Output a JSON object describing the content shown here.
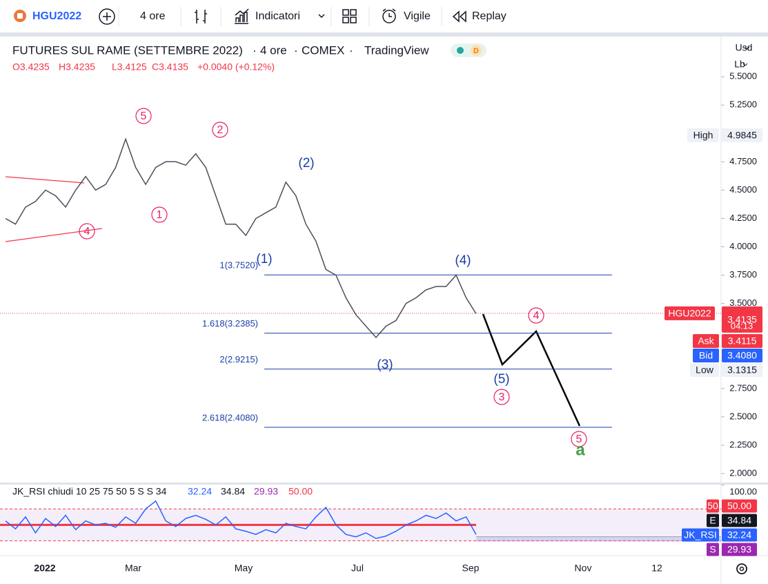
{
  "toolbar": {
    "symbol": "HGU2022",
    "interval": "4 ore",
    "indicators": "Indicatori",
    "alert": "Vigile",
    "replay": "Replay"
  },
  "legend": {
    "title": "FUTURES SUL RAME (SETTEMBRE 2022)",
    "separator": "·",
    "interval": "4 ore",
    "exchange": "COMEX",
    "source": "TradingView",
    "flag": "D",
    "ohlc": [
      "O3.4235",
      "H3.4235",
      "L3.4125",
      "C3.4135",
      "+0.0040 (+0.12%)"
    ]
  },
  "price_axis": {
    "currency": "Usd",
    "unit": "Lb"
  },
  "chart_data": {
    "type": "line",
    "color": "#4a4e5a",
    "values": [
      4.25,
      4.2,
      4.35,
      4.4,
      4.5,
      4.45,
      4.35,
      4.5,
      4.62,
      4.5,
      4.55,
      4.7,
      4.95,
      4.7,
      4.55,
      4.7,
      4.75,
      4.75,
      4.72,
      4.82,
      4.7,
      4.45,
      4.2,
      4.2,
      4.1,
      4.25,
      4.3,
      4.35,
      4.57,
      4.45,
      4.2,
      4.05,
      3.8,
      3.75,
      3.55,
      3.4,
      3.3,
      3.2,
      3.3,
      3.35,
      3.5,
      3.55,
      3.62,
      3.65,
      3.65,
      3.75,
      3.55,
      3.41
    ],
    "ylim": [
      1.921,
      5.854
    ],
    "yticks": [
      {
        "value": 5.5,
        "label": "5.5000"
      },
      {
        "value": 5.25,
        "label": "5.2500"
      },
      {
        "value": 4.75,
        "label": "4.7500"
      },
      {
        "value": 4.5,
        "label": "4.5000"
      },
      {
        "value": 4.25,
        "label": "4.2500"
      },
      {
        "value": 4,
        "label": "4.0000"
      },
      {
        "value": 3.75,
        "label": "3.7500"
      },
      {
        "value": 3.5,
        "label": "3.5000"
      },
      {
        "value": 2.75,
        "label": "2.7500"
      },
      {
        "value": 2.5,
        "label": "2.5000"
      },
      {
        "value": 2.25,
        "label": "2.2500"
      },
      {
        "value": 2,
        "label": "2.0000"
      }
    ],
    "last_price": {
      "name": "HGU2022",
      "value": 3.4135,
      "countdown": "04:13"
    },
    "markers": [
      {
        "name": "High",
        "value": 4.9845
      },
      {
        "name": "Ask",
        "value": 3.4115
      },
      {
        "name": "Bid",
        "value": 3.408,
        "label": "3.4080"
      },
      {
        "name": "Low",
        "value": 3.1315
      }
    ],
    "fib_levels": [
      {
        "value": 3.752,
        "label": "1(3.7520)"
      },
      {
        "value": 3.2385,
        "label": "1.618(3.2385)"
      },
      {
        "value": 2.9215,
        "label": "2(2.9215)"
      },
      {
        "value": 2.408,
        "label": "2.618(2.4080)"
      }
    ],
    "wave_labels": [
      "5",
      "2",
      "1",
      "4",
      "4",
      "3",
      "5",
      "(2)",
      "(1)",
      "(4)",
      "(3)",
      "(5)",
      "a"
    ],
    "time_labels": [
      "2022",
      "Mar",
      "May",
      "Jul",
      "Sep",
      "Nov",
      "12"
    ]
  },
  "rsi": {
    "title": "JK_RSI chiudi 10 25 75 50 5 S S 34",
    "color": "#2962ff",
    "readouts": [
      {
        "name": "JK_RSI",
        "value": 32.24,
        "color": "#2962ff"
      },
      {
        "name": "E",
        "value": 34.84,
        "color": "#131722"
      },
      {
        "name": "S",
        "value": 29.93,
        "color": "#9c27b0"
      },
      {
        "name": "50",
        "value": 50,
        "label": "50.00",
        "color": "#f23645"
      }
    ],
    "values": [
      55,
      45,
      60,
      40,
      58,
      48,
      62,
      44,
      55,
      50,
      52,
      47,
      60,
      52,
      70,
      80,
      55,
      48,
      58,
      62,
      57,
      50,
      60,
      45,
      42,
      38,
      44,
      40,
      52,
      48,
      45,
      60,
      72,
      50,
      38,
      35,
      40,
      33,
      36,
      42,
      50,
      55,
      62,
      58,
      65,
      55,
      60,
      38
    ],
    "ylim": [
      11.3,
      100.6
    ],
    "yticks": [
      {
        "value": 100,
        "label": "100.00"
      }
    ],
    "bands": [
      70,
      30
    ]
  }
}
